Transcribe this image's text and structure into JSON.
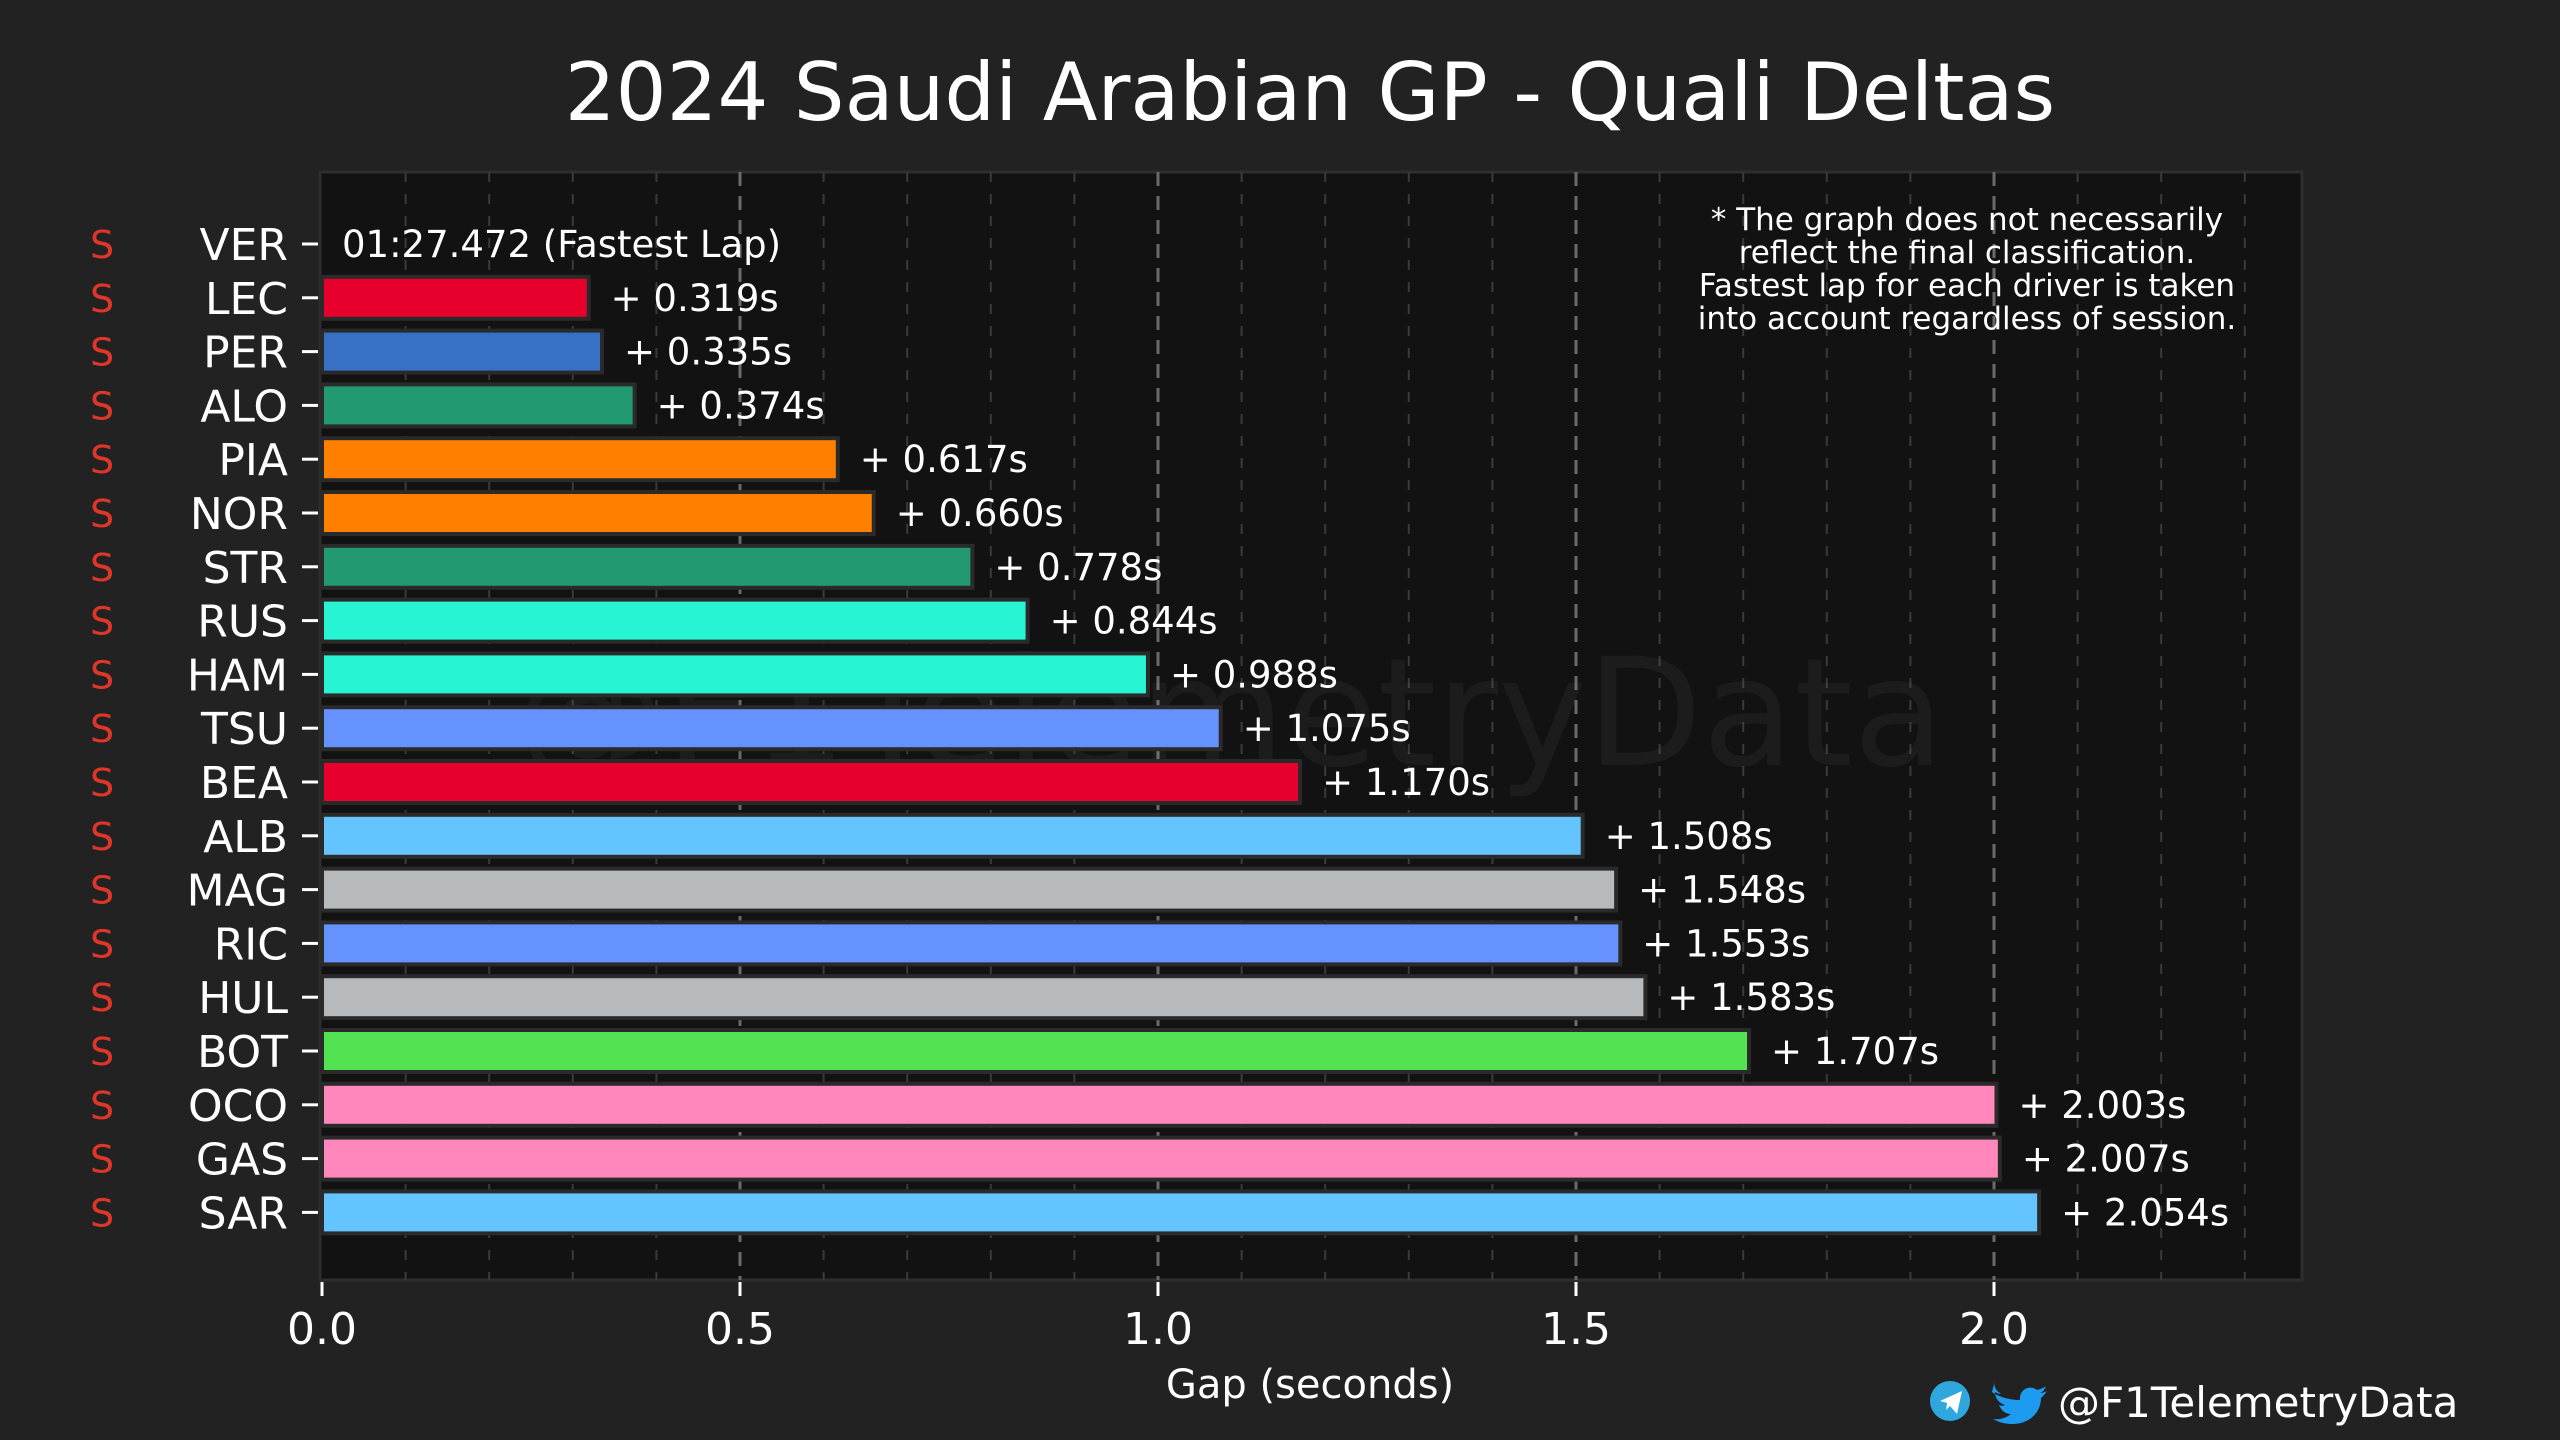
{
  "colors": {
    "background": "#222222",
    "plot_background": "#121212",
    "text": "#ffffff",
    "tyre_soft": "#e0362a",
    "grid": "#6a6a6a",
    "telegram": "#2ea6de",
    "twitter": "#1d9bf0"
  },
  "branding": {
    "handle": "@F1TelemetryData",
    "watermark": "@F1TelemetryData",
    "icons": [
      "telegram-icon",
      "twitter-icon"
    ]
  },
  "note": {
    "lines": [
      "* The graph does not necessarily",
      "reflect the final classification.",
      "Fastest lap for each driver is taken",
      "into account regardless of session."
    ]
  },
  "chart_data": {
    "type": "bar",
    "orientation": "horizontal",
    "title": "2024 Saudi Arabian GP - Quali Deltas",
    "xlabel": "Gap (seconds)",
    "ylabel": "",
    "xlim": [
      0,
      2.38
    ],
    "xticks": [
      "0.0",
      "0.5",
      "1.0",
      "1.5",
      "2.0"
    ],
    "xtick_values": [
      0,
      0.5,
      1.0,
      1.5,
      2.0
    ],
    "grid": true,
    "fastest_lap_label": "01:27.472 (Fastest Lap)",
    "drivers": [
      {
        "code": "VER",
        "tyre": "S",
        "gap": 0.0,
        "label": "01:27.472 (Fastest Lap)",
        "color": "#3671c6"
      },
      {
        "code": "LEC",
        "tyre": "S",
        "gap": 0.319,
        "label": "+ 0.319s",
        "color": "#e8002d"
      },
      {
        "code": "PER",
        "tyre": "S",
        "gap": 0.335,
        "label": "+ 0.335s",
        "color": "#3671c6"
      },
      {
        "code": "ALO",
        "tyre": "S",
        "gap": 0.374,
        "label": "+ 0.374s",
        "color": "#229971"
      },
      {
        "code": "PIA",
        "tyre": "S",
        "gap": 0.617,
        "label": "+ 0.617s",
        "color": "#ff8000"
      },
      {
        "code": "NOR",
        "tyre": "S",
        "gap": 0.66,
        "label": "+ 0.660s",
        "color": "#ff8000"
      },
      {
        "code": "STR",
        "tyre": "S",
        "gap": 0.778,
        "label": "+ 0.778s",
        "color": "#229971"
      },
      {
        "code": "RUS",
        "tyre": "S",
        "gap": 0.844,
        "label": "+ 0.844s",
        "color": "#27f4d2"
      },
      {
        "code": "HAM",
        "tyre": "S",
        "gap": 0.988,
        "label": "+ 0.988s",
        "color": "#27f4d2"
      },
      {
        "code": "TSU",
        "tyre": "S",
        "gap": 1.075,
        "label": "+ 1.075s",
        "color": "#6692ff"
      },
      {
        "code": "BEA",
        "tyre": "S",
        "gap": 1.17,
        "label": "+ 1.170s",
        "color": "#e8002d"
      },
      {
        "code": "ALB",
        "tyre": "S",
        "gap": 1.508,
        "label": "+ 1.508s",
        "color": "#64c4ff"
      },
      {
        "code": "MAG",
        "tyre": "S",
        "gap": 1.548,
        "label": "+ 1.548s",
        "color": "#b6babd"
      },
      {
        "code": "RIC",
        "tyre": "S",
        "gap": 1.553,
        "label": "+ 1.553s",
        "color": "#6692ff"
      },
      {
        "code": "HUL",
        "tyre": "S",
        "gap": 1.583,
        "label": "+ 1.583s",
        "color": "#b6babd"
      },
      {
        "code": "BOT",
        "tyre": "S",
        "gap": 1.707,
        "label": "+ 1.707s",
        "color": "#52e252"
      },
      {
        "code": "OCO",
        "tyre": "S",
        "gap": 2.003,
        "label": "+ 2.003s",
        "color": "#ff87bc"
      },
      {
        "code": "GAS",
        "tyre": "S",
        "gap": 2.007,
        "label": "+ 2.007s",
        "color": "#ff87bc"
      },
      {
        "code": "SAR",
        "tyre": "S",
        "gap": 2.054,
        "label": "+ 2.054s",
        "color": "#64c4ff"
      }
    ]
  }
}
